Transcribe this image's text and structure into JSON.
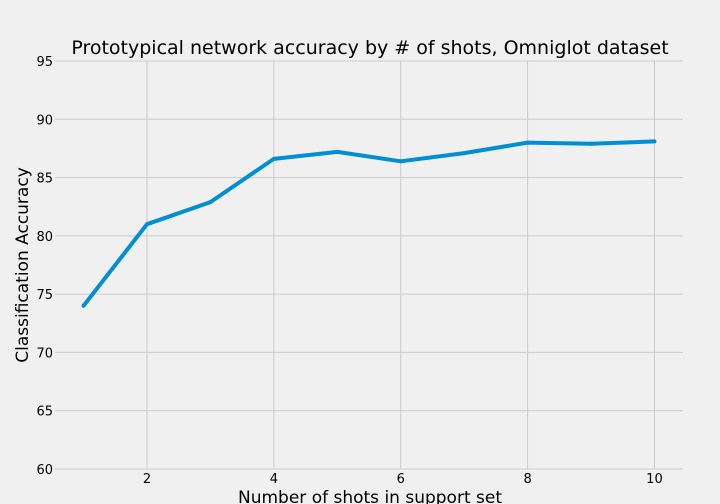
{
  "chart_data": {
    "type": "line",
    "title": "Prototypical network accuracy by # of shots, Omniglot dataset",
    "xlabel": "Number of shots in support set",
    "ylabel": "Classification Accuracy",
    "x": [
      1,
      2,
      3,
      4,
      5,
      6,
      7,
      8,
      9,
      10
    ],
    "series": [
      {
        "name": "",
        "values": [
          74.0,
          81.0,
          82.9,
          86.6,
          87.2,
          86.4,
          87.1,
          88.0,
          87.9,
          88.1
        ],
        "color": "#008fd5"
      }
    ],
    "xlim": [
      0.55,
      10.45
    ],
    "ylim": [
      60,
      95
    ],
    "xticks": [
      2,
      4,
      6,
      8,
      10
    ],
    "yticks": [
      60,
      65,
      70,
      75,
      80,
      85,
      90,
      95
    ],
    "grid": true
  },
  "colors": {
    "background": "#f0f0f0",
    "grid": "#cbcbcb",
    "line": "#008fd5"
  }
}
